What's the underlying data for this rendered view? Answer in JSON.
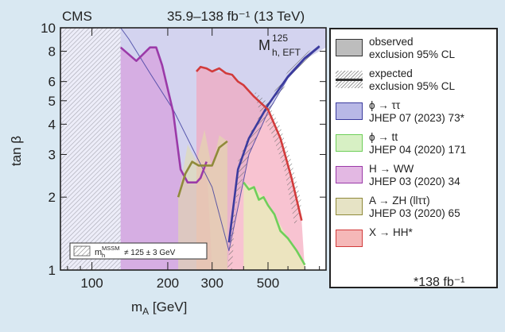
{
  "header": {
    "experiment": "CMS",
    "lumi": "35.9–138 fb⁻¹ (13 TeV)"
  },
  "scenario": {
    "main": "M",
    "sup": "125",
    "sub": "h, EFT"
  },
  "inset": {
    "text_main": "m",
    "text_sup": "MSSM",
    "text_sub": "h",
    "text_rest": "≠ 125 ± 3 GeV"
  },
  "footnote": "*138 fb⁻¹",
  "legend": [
    {
      "label": "observed",
      "label2": "exclusion 95% CL",
      "swatch": "#bdbdbd",
      "kind": "box"
    },
    {
      "label": "expected",
      "label2": "exclusion 95% CL",
      "swatch": "#333333",
      "kind": "line"
    },
    {
      "label": "ϕ → ττ",
      "label2": "JHEP 07 (2023) 73*",
      "swatch": "#b8b8e6",
      "border": "#3b3b9e",
      "kind": "box"
    },
    {
      "label": "ϕ → tt",
      "label2": "JHEP 04 (2020) 171",
      "swatch": "#d7f0c4",
      "border": "#6fcf5a",
      "kind": "box"
    },
    {
      "label": "H → WW",
      "label2": "JHEP 03 (2020) 34",
      "swatch": "#e3b8e3",
      "border": "#9b3aa8",
      "kind": "box"
    },
    {
      "label": "A → ZH (llττ)",
      "label2": "JHEP 03 (2020) 65",
      "swatch": "#e6e3c5",
      "border": "#8f8a3a",
      "kind": "box"
    },
    {
      "label": "X → HH*",
      "label2": "",
      "swatch": "#f5b8b8",
      "border": "#d23b3b",
      "kind": "box"
    }
  ],
  "chart_data": {
    "type": "area",
    "xlabel": "m_A [GeV]",
    "ylabel": "tan β",
    "xscale": "log",
    "yscale": "log",
    "xlim": [
      75,
      850
    ],
    "ylim": [
      1,
      10
    ],
    "xticks": [
      100,
      200,
      300,
      500
    ],
    "yticks": [
      1,
      2,
      3,
      4,
      5,
      6,
      8,
      10
    ],
    "colors": {
      "tautau": "#3b3b9e",
      "tt": "#6fcf5a",
      "WW": "#9b3aa8",
      "ZH": "#8f8a3a",
      "HH": "#d23b3b"
    },
    "series": [
      {
        "name": "ϕ → ττ observed",
        "x": [
          130,
          140,
          170,
          210,
          250,
          300,
          350,
          420,
          500,
          600,
          700,
          800
        ],
        "y": [
          10,
          9.0,
          6.5,
          4.6,
          3.2,
          2.2,
          1.2,
          3.0,
          4.5,
          6.2,
          7.4,
          8.3
        ]
      },
      {
        "name": "ϕ → ττ expected",
        "x": [
          350,
          380,
          420,
          500,
          600,
          700,
          800
        ],
        "y": [
          1.3,
          2.6,
          3.5,
          4.8,
          6.3,
          7.5,
          8.4
        ]
      },
      {
        "name": "H → WW expected",
        "x": [
          130,
          150,
          170,
          180,
          190,
          210,
          225,
          240,
          260,
          270,
          285
        ],
        "y": [
          8.3,
          7.3,
          8.3,
          8.3,
          7.0,
          4.5,
          2.6,
          2.3,
          2.3,
          2.4,
          2.8
        ]
      },
      {
        "name": "A → ZH (llττ) expected",
        "x": [
          220,
          235,
          250,
          265,
          285,
          300,
          320,
          345
        ],
        "y": [
          2.0,
          2.5,
          2.8,
          2.7,
          2.7,
          2.7,
          3.2,
          3.4
        ]
      },
      {
        "name": "X → HH expected",
        "x": [
          260,
          270,
          285,
          300,
          320,
          340,
          360,
          380,
          400,
          440,
          500,
          560,
          620,
          680
        ],
        "y": [
          6.6,
          6.9,
          6.8,
          6.6,
          6.8,
          6.5,
          6.4,
          6.0,
          5.8,
          5.2,
          4.6,
          3.5,
          2.4,
          1.6
        ]
      },
      {
        "name": "ϕ → tt expected",
        "x": [
          400,
          420,
          440,
          460,
          480,
          500,
          530,
          560,
          600,
          650,
          700
        ],
        "y": [
          2.3,
          2.15,
          2.2,
          1.95,
          2.0,
          1.85,
          1.7,
          1.45,
          1.35,
          1.2,
          1.05
        ]
      }
    ]
  }
}
